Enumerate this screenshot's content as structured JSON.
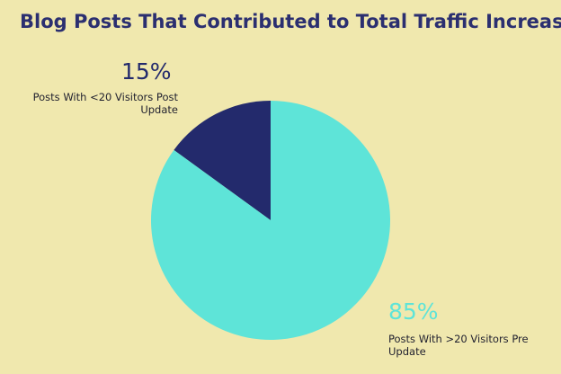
{
  "chart_data": {
    "type": "pie",
    "title": "Blog Posts That Contributed to Total Traffic Increase",
    "slices": [
      {
        "label": "Posts With <20 Visitors Post Update",
        "value": 15,
        "display": "15%",
        "color": "#232a6c"
      },
      {
        "label": "Posts With >20 Visitors Pre Update",
        "value": 85,
        "display": "85%",
        "color": "#5ee4d8"
      }
    ]
  }
}
